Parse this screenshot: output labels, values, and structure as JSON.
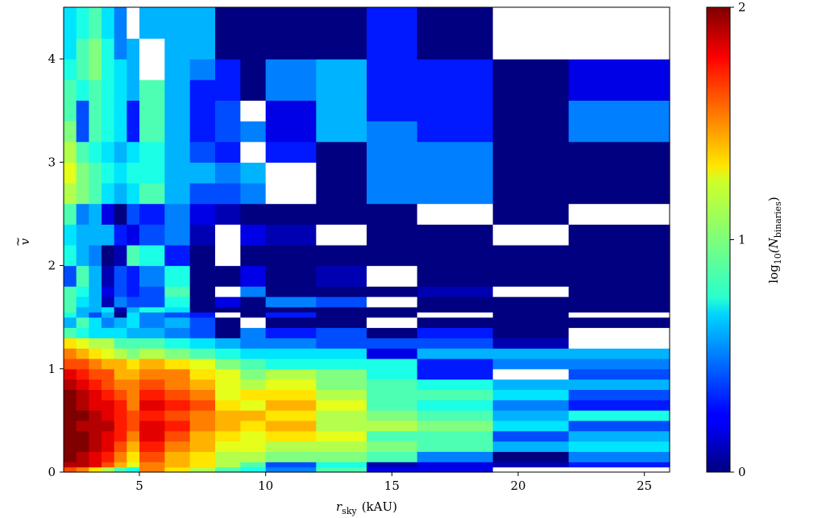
{
  "chart_data": {
    "type": "heatmap",
    "title": "",
    "xlabel": "r_sky (kAU)",
    "xlabel_main": "r",
    "xlabel_sub": "sky",
    "xlabel_unit": "(kAU)",
    "ylabel": "ṽ",
    "ylabel_main": "v",
    "ylabel_accent": "~",
    "xlim": [
      2,
      26
    ],
    "ylim": [
      0,
      4.5
    ],
    "x_ticks": [
      5,
      10,
      15,
      20,
      25
    ],
    "y_ticks": [
      0,
      1,
      2,
      3,
      4
    ],
    "grid": false,
    "colorbar": {
      "label": "log10(N_binaries)",
      "label_main": "log",
      "label_sub": "10",
      "label_open": "(N",
      "label_sub2": "binaries",
      "label_close": ")",
      "range": [
        0,
        2
      ],
      "ticks": [
        0,
        1,
        2
      ],
      "colormap": "jet"
    },
    "x_edges": [
      2,
      2.5,
      3,
      3.5,
      4,
      4.5,
      5,
      6,
      7,
      8,
      9,
      10,
      12,
      14,
      16,
      19,
      22,
      26
    ],
    "y_edges": [
      0,
      0.05,
      0.1,
      0.2,
      0.3,
      0.4,
      0.5,
      0.6,
      0.7,
      0.8,
      0.9,
      1.0,
      1.1,
      1.2,
      1.3,
      1.4,
      1.5,
      1.55,
      1.6,
      1.7,
      1.8,
      2.0,
      2.2,
      2.4,
      2.6,
      2.8,
      3.0,
      3.2,
      3.4,
      3.6,
      3.8,
      4.0,
      4.2,
      4.5
    ],
    "missing_value_color": "#ffffff",
    "values": [
      [
        1.6,
        1.5,
        1.3,
        1.1,
        0.9,
        0.8,
        1.5,
        1.3,
        1.1,
        0.9,
        0.8,
        0.5,
        0.9,
        0.2,
        0.2,
        null,
        null
      ],
      [
        1.9,
        1.9,
        1.8,
        1.6,
        1.4,
        1.2,
        1.5,
        1.4,
        1.3,
        1.1,
        0.9,
        0.4,
        0.8,
        0.1,
        0.2,
        0.1,
        0.3
      ],
      [
        2.0,
        1.9,
        1.8,
        1.7,
        1.5,
        1.3,
        1.6,
        1.4,
        1.3,
        1.1,
        1.1,
        1.0,
        1.0,
        0.9,
        0.5,
        0.0,
        0.5
      ],
      [
        2.0,
        2.0,
        1.9,
        1.8,
        1.6,
        1.4,
        1.7,
        1.5,
        1.4,
        1.2,
        1.2,
        1.1,
        1.1,
        1.0,
        0.9,
        0.6,
        0.7
      ],
      [
        2.0,
        2.0,
        1.9,
        1.8,
        1.7,
        1.5,
        1.8,
        1.6,
        1.4,
        1.3,
        1.2,
        1.3,
        1.2,
        0.9,
        0.9,
        0.4,
        0.6
      ],
      [
        2.0,
        1.9,
        1.9,
        1.9,
        1.7,
        1.6,
        1.8,
        1.7,
        1.5,
        1.4,
        1.3,
        1.4,
        1.1,
        1.1,
        1.0,
        0.7,
        0.4
      ],
      [
        2.0,
        2.0,
        1.9,
        1.8,
        1.7,
        1.6,
        1.7,
        1.6,
        1.5,
        1.4,
        1.4,
        1.3,
        1.1,
        1.0,
        0.9,
        0.6,
        0.8
      ],
      [
        2.0,
        1.9,
        1.8,
        1.8,
        1.7,
        1.5,
        1.8,
        1.7,
        1.6,
        1.3,
        1.2,
        1.4,
        1.2,
        0.9,
        0.8,
        0.5,
        0.3
      ],
      [
        2.0,
        1.9,
        1.8,
        1.7,
        1.6,
        1.5,
        1.7,
        1.6,
        1.5,
        1.2,
        1.3,
        1.3,
        1.1,
        0.9,
        0.9,
        0.7,
        0.4
      ],
      [
        1.9,
        1.8,
        1.7,
        1.6,
        1.5,
        1.5,
        1.6,
        1.5,
        1.4,
        1.2,
        1.1,
        1.2,
        1.0,
        0.9,
        0.8,
        0.6,
        0.6
      ],
      [
        1.8,
        1.7,
        1.6,
        1.6,
        1.4,
        1.4,
        1.5,
        1.5,
        1.3,
        1.2,
        1.0,
        1.1,
        1.0,
        0.8,
        0.3,
        null,
        0.4
      ],
      [
        1.6,
        1.6,
        1.5,
        1.4,
        1.4,
        1.3,
        1.4,
        1.3,
        1.2,
        1.0,
        0.9,
        0.8,
        0.8,
        0.8,
        0.3,
        0.5,
        0.5
      ],
      [
        1.5,
        1.4,
        1.3,
        1.2,
        1.1,
        1.0,
        1.1,
        1.0,
        0.9,
        0.8,
        0.7,
        0.7,
        0.7,
        0.2,
        0.6,
        0.6,
        0.6
      ],
      [
        1.3,
        1.2,
        1.1,
        1.1,
        0.9,
        0.9,
        0.9,
        0.8,
        0.7,
        0.6,
        0.5,
        0.5,
        0.4,
        0.4,
        0.4,
        0.1,
        null
      ],
      [
        0.9,
        0.8,
        0.7,
        0.7,
        0.7,
        0.6,
        0.6,
        0.5,
        0.4,
        0.0,
        0.5,
        0.3,
        0.4,
        0.0,
        0.3,
        0.0,
        null
      ],
      [
        0.6,
        0.9,
        0.7,
        0.5,
        0.6,
        0.7,
        0.5,
        0.6,
        0.4,
        0.0,
        null,
        0.0,
        0.0,
        null,
        0.0,
        0.0,
        0.0
      ],
      [
        0.8,
        0.6,
        0.4,
        0.6,
        0.0,
        0.7,
        0.5,
        0.4,
        0.3,
        null,
        0.0,
        0.3,
        0.0,
        0.0,
        null,
        0.0,
        null
      ],
      [
        0.9,
        0.6,
        0.6,
        0.7,
        0.1,
        0.6,
        0.8,
        0.7,
        0.0,
        0.0,
        0.0,
        0.0,
        0.0,
        0.0,
        0.0,
        0.0,
        0.0
      ],
      [
        0.9,
        0.7,
        0.6,
        0.1,
        0.5,
        0.4,
        0.4,
        0.8,
        0.0,
        0.2,
        0.0,
        0.5,
        0.4,
        null,
        0.0,
        0.0,
        0.0
      ],
      [
        0.9,
        0.8,
        0.6,
        0.2,
        0.4,
        0.3,
        0.4,
        0.9,
        0.0,
        null,
        0.5,
        0.0,
        0.0,
        0.0,
        0.1,
        null,
        0.0
      ],
      [
        0.4,
        0.9,
        0.6,
        0.1,
        0.4,
        0.3,
        0.5,
        0.8,
        0.0,
        0.0,
        0.2,
        0.0,
        0.1,
        null,
        0.0,
        0.0,
        0.0
      ],
      [
        0.8,
        0.6,
        0.5,
        0.0,
        0.1,
        0.9,
        0.8,
        0.3,
        0.0,
        null,
        0.0,
        0.0,
        0.0,
        0.0,
        0.0,
        0.0,
        0.0
      ],
      [
        0.7,
        0.6,
        0.6,
        0.6,
        0.3,
        0.2,
        0.4,
        0.5,
        0.1,
        null,
        0.2,
        0.1,
        null,
        0.0,
        0.0,
        null,
        0.0
      ],
      [
        0.9,
        0.5,
        0.6,
        0.2,
        0.0,
        0.4,
        0.3,
        0.5,
        0.2,
        0.1,
        0.0,
        0.0,
        0.0,
        0.0,
        null,
        0.0,
        null
      ],
      [
        1.1,
        1.0,
        0.9,
        0.7,
        0.6,
        0.7,
        0.9,
        0.6,
        0.4,
        0.4,
        0.5,
        null,
        0.0,
        0.5,
        0.5,
        0.0,
        0.0
      ],
      [
        1.2,
        1.0,
        0.9,
        0.8,
        0.7,
        0.8,
        0.8,
        0.6,
        0.6,
        0.5,
        0.6,
        null,
        0.0,
        0.5,
        0.5,
        0.0,
        0.0
      ],
      [
        1.1,
        0.9,
        0.8,
        0.7,
        0.6,
        0.7,
        0.8,
        0.6,
        0.4,
        0.3,
        null,
        0.3,
        0.0,
        0.5,
        0.5,
        0.0,
        0.0
      ],
      [
        1.0,
        0.4,
        0.9,
        0.8,
        0.7,
        0.3,
        0.9,
        0.6,
        0.3,
        0.4,
        0.5,
        0.2,
        0.6,
        0.5,
        0.3,
        0.0,
        0.5
      ],
      [
        0.9,
        0.4,
        0.9,
        0.8,
        0.7,
        0.3,
        0.9,
        0.6,
        0.3,
        0.4,
        null,
        0.2,
        0.6,
        0.3,
        0.3,
        0.0,
        0.5
      ],
      [
        0.9,
        0.8,
        0.9,
        0.8,
        0.7,
        0.6,
        0.9,
        0.6,
        0.3,
        0.3,
        0.0,
        0.5,
        0.6,
        0.3,
        0.3,
        0.0,
        0.2
      ],
      [
        0.8,
        0.9,
        1.0,
        0.8,
        0.7,
        0.6,
        null,
        0.6,
        0.5,
        0.3,
        0.0,
        0.5,
        0.6,
        0.3,
        0.3,
        0.0,
        0.2
      ],
      [
        0.7,
        0.9,
        1.0,
        0.8,
        0.5,
        0.6,
        null,
        0.6,
        0.6,
        0.0,
        0.0,
        0.0,
        0.0,
        0.3,
        0.0,
        null,
        null
      ],
      [
        0.7,
        0.8,
        0.9,
        0.7,
        0.5,
        null,
        0.6,
        0.6,
        0.6,
        0.0,
        0.0,
        0.0,
        0.0,
        0.3,
        0.0,
        null,
        null
      ]
    ]
  }
}
